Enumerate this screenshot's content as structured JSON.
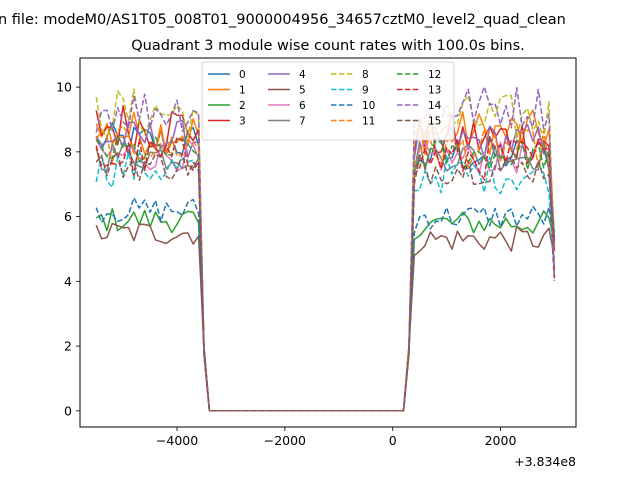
{
  "figure": {
    "suptitle": "n file: modeM0/AS1T05_008T01_9000004956_34657cztM0_level2_quad_clean",
    "x_offset_label": "+3.834e8"
  },
  "chart_data": {
    "type": "line",
    "title": "Quadrant 3 module wise count rates with 100.0s bins.",
    "xlabel": "",
    "ylabel": "",
    "xlim": [
      -5800,
      3400
    ],
    "ylim": [
      -0.5,
      10.9
    ],
    "x_offset": 383400000,
    "xticks": [
      -4000,
      -2000,
      0,
      2000
    ],
    "xtick_labels": [
      "−4000",
      "−2000",
      "0",
      "2000"
    ],
    "yticks": [
      0,
      2,
      4,
      6,
      8,
      10
    ],
    "ytick_labels": [
      "0",
      "2",
      "4",
      "6",
      "8",
      "10"
    ],
    "grid": false,
    "legend": {
      "placement": "top-center",
      "columns": 4
    },
    "segments": {
      "left_x": [
        -5500,
        -5400,
        -5300,
        -5200,
        -5100,
        -5000,
        -4900,
        -4800,
        -4700,
        -4600,
        -4500,
        -4400,
        -4300,
        -4200,
        -4100,
        -4000,
        -3900,
        -3800,
        -3700,
        -3600
      ],
      "gap_x": [
        -3500,
        -3400,
        200,
        300
      ],
      "right_x": [
        400,
        500,
        600,
        700,
        800,
        900,
        1000,
        1100,
        1200,
        1300,
        1400,
        1500,
        1600,
        1700,
        1800,
        1900,
        2000,
        2100,
        2200,
        2300,
        2400,
        2500,
        2600,
        2700,
        2800,
        2900,
        3000
      ]
    },
    "series": [
      {
        "name": "0",
        "color": "#1f77b4",
        "dash": "solid",
        "level": 8.3,
        "spread": 0.6,
        "right_level": 7.9
      },
      {
        "name": "1",
        "color": "#ff7f0e",
        "dash": "solid",
        "level": 8.6,
        "spread": 0.7,
        "right_level": 8.6
      },
      {
        "name": "2",
        "color": "#2ca02c",
        "dash": "solid",
        "level": 5.9,
        "spread": 0.4,
        "right_level": 5.8
      },
      {
        "name": "3",
        "color": "#d62728",
        "dash": "solid",
        "level": 8.8,
        "spread": 0.8,
        "right_level": 8.4
      },
      {
        "name": "4",
        "color": "#9467bd",
        "dash": "solid",
        "level": 8.4,
        "spread": 0.6,
        "right_level": 8.3
      },
      {
        "name": "5",
        "color": "#8c564b",
        "dash": "solid",
        "level": 5.5,
        "spread": 0.4,
        "right_level": 5.3
      },
      {
        "name": "6",
        "color": "#e377c2",
        "dash": "solid",
        "level": 7.9,
        "spread": 0.5,
        "right_level": 7.8
      },
      {
        "name": "7",
        "color": "#7f7f7f",
        "dash": "solid",
        "level": 7.9,
        "spread": 0.5,
        "right_level": 7.9
      },
      {
        "name": "8",
        "color": "#bcbd22",
        "dash": "dashed",
        "level": 9.2,
        "spread": 0.8,
        "right_level": 9.0
      },
      {
        "name": "9",
        "color": "#17becf",
        "dash": "dashed",
        "level": 7.5,
        "spread": 0.6,
        "right_level": 7.3
      },
      {
        "name": "10",
        "color": "#1f77b4",
        "dash": "dashed",
        "level": 6.2,
        "spread": 0.4,
        "right_level": 6.0
      },
      {
        "name": "11",
        "color": "#ff7f0e",
        "dash": "dashed",
        "level": 8.2,
        "spread": 0.6,
        "right_level": 8.1
      },
      {
        "name": "12",
        "color": "#2ca02c",
        "dash": "dashed",
        "level": 8.0,
        "spread": 0.5,
        "right_level": 7.9
      },
      {
        "name": "13",
        "color": "#d62728",
        "dash": "dashed",
        "level": 7.8,
        "spread": 0.7,
        "right_level": 7.8
      },
      {
        "name": "14",
        "color": "#9467bd",
        "dash": "dashed",
        "level": 9.3,
        "spread": 0.7,
        "right_level": 9.4
      },
      {
        "name": "15",
        "color": "#8c564b",
        "dash": "dashed",
        "level": 7.6,
        "spread": 0.5,
        "right_level": 7.5
      }
    ]
  }
}
